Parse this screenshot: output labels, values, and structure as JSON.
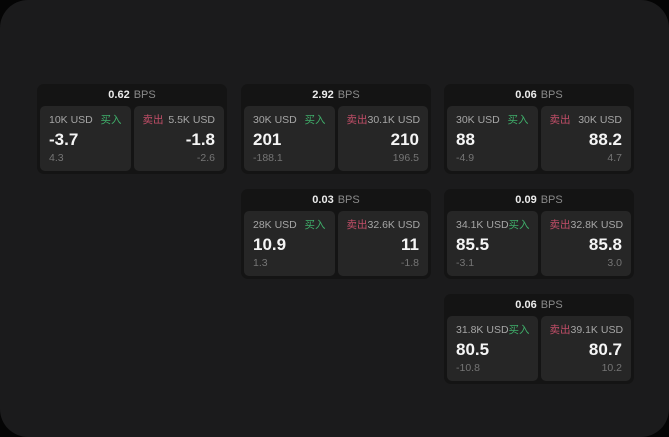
{
  "labels": {
    "bps_unit": "BPS",
    "buy": "买入",
    "sell": "卖出"
  },
  "colors": {
    "page_background": "#050505",
    "window_background": "#1b1b1c",
    "card_background": "#141414",
    "panel_background": "#262626",
    "buy_accent": "#3fae6a",
    "sell_accent": "#c24e68"
  },
  "cards": [
    {
      "bps": "0.62",
      "buy": {
        "amount": "10K USD",
        "value": "-3.7",
        "delta": "4.3"
      },
      "sell": {
        "amount": "5.5K USD",
        "value": "-1.8",
        "delta": "-2.6"
      }
    },
    {
      "bps": "2.92",
      "buy": {
        "amount": "30K USD",
        "value": "201",
        "delta": "-188.1"
      },
      "sell": {
        "amount": "30.1K USD",
        "value": "210",
        "delta": "196.5"
      }
    },
    {
      "bps": "0.06",
      "buy": {
        "amount": "30K USD",
        "value": "88",
        "delta": "-4.9"
      },
      "sell": {
        "amount": "30K USD",
        "value": "88.2",
        "delta": "4.7"
      }
    },
    {
      "bps": "0.03",
      "buy": {
        "amount": "28K USD",
        "value": "10.9",
        "delta": "1.3"
      },
      "sell": {
        "amount": "32.6K USD",
        "value": "11",
        "delta": "-1.8"
      }
    },
    {
      "bps": "0.09",
      "buy": {
        "amount": "34.1K USD",
        "value": "85.5",
        "delta": "-3.1"
      },
      "sell": {
        "amount": "32.8K USD",
        "value": "85.8",
        "delta": "3.0"
      }
    },
    {
      "bps": "0.06",
      "buy": {
        "amount": "31.8K USD",
        "value": "80.5",
        "delta": "-10.8"
      },
      "sell": {
        "amount": "39.1K USD",
        "value": "80.7",
        "delta": "10.2"
      }
    }
  ]
}
